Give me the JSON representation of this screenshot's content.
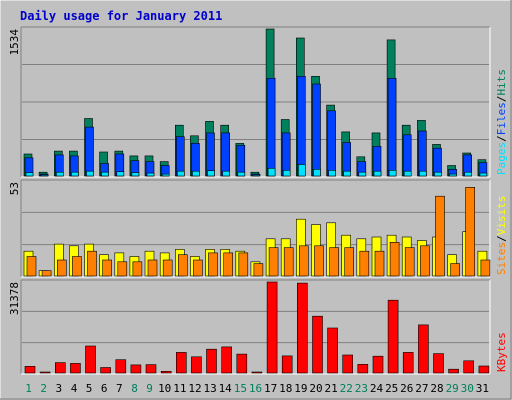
{
  "title": "Daily usage for January 2011",
  "colors": {
    "background": "#c0c0c0",
    "frame_dark": "#808080",
    "frame_light": "#ffffff",
    "title": "#0000cc",
    "hits": "#00805c",
    "files": "#0040ff",
    "pages": "#00e0ff",
    "visits": "#ffff00",
    "sites": "#ff8000",
    "kbytes": "#ff0000",
    "weekday": "#000000",
    "weekend": "#00805c"
  },
  "chart_data": [
    {
      "type": "bar",
      "panel": "top",
      "ymax_label": "1534",
      "legend": [
        "Pages",
        "/",
        "Files",
        "/",
        "Hits"
      ],
      "categories": [
        "1",
        "2",
        "3",
        "4",
        "5",
        "6",
        "7",
        "8",
        "9",
        "10",
        "11",
        "12",
        "13",
        "14",
        "15",
        "16",
        "17",
        "18",
        "19",
        "20",
        "21",
        "22",
        "23",
        "24",
        "25",
        "26",
        "27",
        "28",
        "29",
        "30",
        "31"
      ],
      "ymax": 1534,
      "series": [
        {
          "name": "Hits",
          "values": [
            230,
            40,
            260,
            260,
            600,
            250,
            260,
            210,
            210,
            150,
            530,
            420,
            570,
            530,
            340,
            40,
            1534,
            590,
            1440,
            1040,
            740,
            460,
            200,
            450,
            1420,
            530,
            580,
            330,
            110,
            240,
            170
          ]
        },
        {
          "name": "Files",
          "values": [
            190,
            20,
            220,
            210,
            510,
            130,
            230,
            160,
            150,
            110,
            410,
            340,
            450,
            450,
            320,
            20,
            1020,
            450,
            1040,
            960,
            680,
            350,
            150,
            310,
            1020,
            430,
            470,
            290,
            70,
            220,
            140
          ]
        },
        {
          "name": "Pages",
          "values": [
            35,
            5,
            40,
            40,
            50,
            40,
            45,
            35,
            30,
            20,
            50,
            50,
            55,
            50,
            40,
            5,
            80,
            60,
            120,
            70,
            60,
            50,
            40,
            50,
            60,
            50,
            50,
            40,
            20,
            40,
            30
          ]
        }
      ]
    },
    {
      "type": "bar",
      "panel": "middle",
      "ymax_label": "53",
      "legend": [
        "Sites",
        "/",
        "Visits"
      ],
      "categories": [
        "1",
        "2",
        "3",
        "4",
        "5",
        "6",
        "7",
        "8",
        "9",
        "10",
        "11",
        "12",
        "13",
        "14",
        "15",
        "16",
        "17",
        "18",
        "19",
        "20",
        "21",
        "22",
        "23",
        "24",
        "25",
        "26",
        "27",
        "28",
        "29",
        "30",
        "31"
      ],
      "ymax": 53,
      "series": [
        {
          "name": "Visits",
          "values": [
            14,
            3,
            18,
            17,
            18,
            12,
            13,
            11,
            14,
            13,
            15,
            11,
            15,
            15,
            14,
            8,
            21,
            21,
            32,
            29,
            30,
            23,
            21,
            22,
            23,
            22,
            20,
            22,
            12,
            25,
            14
          ]
        },
        {
          "name": "Sites",
          "values": [
            11,
            3,
            9,
            11,
            14,
            9,
            8,
            8,
            9,
            9,
            12,
            9,
            13,
            13,
            13,
            7,
            16,
            16,
            17,
            17,
            16,
            16,
            14,
            14,
            19,
            16,
            17,
            45,
            7,
            50,
            9
          ]
        }
      ]
    },
    {
      "type": "bar",
      "panel": "bottom",
      "ymax_label": "31378",
      "legend": [
        "KBytes"
      ],
      "categories": [
        "1",
        "2",
        "3",
        "4",
        "5",
        "6",
        "7",
        "8",
        "9",
        "10",
        "11",
        "12",
        "13",
        "14",
        "15",
        "16",
        "17",
        "18",
        "19",
        "20",
        "21",
        "22",
        "23",
        "24",
        "25",
        "26",
        "27",
        "28",
        "29",
        "30",
        "31"
      ],
      "ymax": 31378,
      "series": [
        {
          "name": "KBytes",
          "values": [
            2300,
            200,
            3600,
            3300,
            9300,
            1900,
            4600,
            2800,
            2900,
            600,
            7100,
            5600,
            8200,
            9000,
            6500,
            200,
            31378,
            5900,
            31000,
            19600,
            15500,
            6200,
            3000,
            5800,
            25100,
            7100,
            16600,
            6700,
            1300,
            4200,
            2400
          ]
        }
      ]
    }
  ],
  "weekend_days": [
    1,
    2,
    8,
    9,
    15,
    16,
    22,
    23,
    29,
    30
  ]
}
